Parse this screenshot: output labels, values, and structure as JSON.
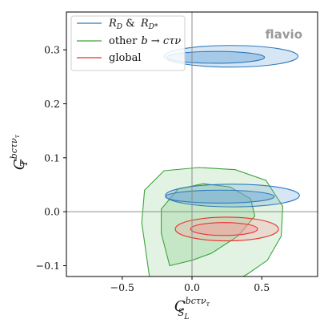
{
  "chart_data": {
    "type": "contour",
    "brand_label": "flavio",
    "xlabel": {
      "main": "C",
      "sub": "S",
      "subsub": "L",
      "sup": "bcτν",
      "supsub": "τ"
    },
    "ylabel": {
      "main": "C",
      "sub": "T",
      "sup": "bcτν",
      "supsub": "τ"
    },
    "xlim": [
      -0.9,
      0.9
    ],
    "ylim": [
      -0.12,
      0.37
    ],
    "xticks": [
      -0.5,
      0.0,
      0.5
    ],
    "xtick_labels": [
      "−0.5",
      "0.0",
      "0.5"
    ],
    "yticks": [
      -0.1,
      0.0,
      0.1,
      0.2,
      0.3
    ],
    "ytick_labels": [
      "−0.1",
      "0.0",
      "0.1",
      "0.2",
      "0.3"
    ],
    "reference_lines": {
      "x": 0.0,
      "y": 0.0
    },
    "legend": {
      "placement": "top-left",
      "entries": [
        {
          "label_main": "R",
          "label_sub": "D",
          "label_amp": "&",
          "label_main2": "R",
          "label_sub2": "D*",
          "color": "#2f7bbf"
        },
        {
          "label_prefix": "other",
          "label_formula": "b → cτν",
          "color": "#3ea23e"
        },
        {
          "label_prefix": "global",
          "color": "#e8322f"
        }
      ]
    },
    "series": [
      {
        "color": "#2f7bbf",
        "fill": "#6aa7d8",
        "regions": [
          {
            "level": "2sigma",
            "cx": 0.29,
            "cy": 0.03,
            "rx": 0.48,
            "ry": 0.021,
            "tilt_deg": 0
          },
          {
            "level": "1sigma",
            "cx": 0.2,
            "cy": 0.028,
            "rx": 0.39,
            "ry": 0.012,
            "tilt_deg": 0
          },
          {
            "level": "2sigma",
            "cx": 0.28,
            "cy": 0.288,
            "rx": 0.48,
            "ry": 0.02,
            "tilt_deg": 0
          },
          {
            "level": "1sigma",
            "cx": 0.17,
            "cy": 0.286,
            "rx": 0.35,
            "ry": 0.011,
            "tilt_deg": 0
          }
        ]
      },
      {
        "color": "#3ea23e",
        "fill": "#8fd08f",
        "outer_polygon": [
          [
            -0.3,
            -0.13
          ],
          [
            -0.36,
            -0.02
          ],
          [
            -0.34,
            0.04
          ],
          [
            -0.2,
            0.076
          ],
          [
            0.05,
            0.082
          ],
          [
            0.31,
            0.078
          ],
          [
            0.53,
            0.058
          ],
          [
            0.65,
            0.01
          ],
          [
            0.64,
            -0.045
          ],
          [
            0.54,
            -0.09
          ],
          [
            0.4,
            -0.115
          ],
          [
            0.3,
            -0.13
          ]
        ],
        "inner_polygon": [
          [
            -0.16,
            -0.1
          ],
          [
            -0.22,
            -0.04
          ],
          [
            -0.22,
            0.005
          ],
          [
            -0.1,
            0.042
          ],
          [
            0.08,
            0.052
          ],
          [
            0.27,
            0.046
          ],
          [
            0.42,
            0.024
          ],
          [
            0.45,
            -0.008
          ],
          [
            0.33,
            -0.045
          ],
          [
            0.14,
            -0.077
          ],
          [
            0.0,
            -0.09
          ]
        ]
      },
      {
        "color": "#e8322f",
        "fill": "#f59a9a",
        "regions": [
          {
            "level": "2sigma",
            "cx": 0.25,
            "cy": -0.032,
            "rx": 0.37,
            "ry": 0.022,
            "tilt_deg": 0
          },
          {
            "level": "1sigma",
            "cx": 0.23,
            "cy": -0.032,
            "rx": 0.24,
            "ry": 0.012,
            "tilt_deg": 0
          }
        ]
      }
    ]
  }
}
